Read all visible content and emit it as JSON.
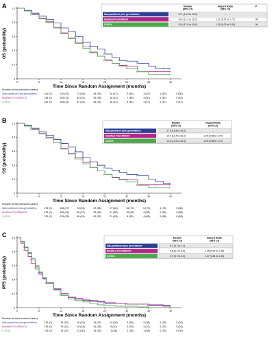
{
  "colors": {
    "nab": "#2e3f94",
    "folfirinox": "#b2278b",
    "sirox": "#4fa84c",
    "axis": "#231f20",
    "table_border": "#9a9a9a",
    "row_shade": "#e6e6e6"
  },
  "arms": [
    "Nab-paclitaxel plus gemcitabine",
    "Modified FOLFIRINOX",
    "S-IROX"
  ],
  "chart_data": [
    {
      "id": "A",
      "type": "line",
      "step": true,
      "ylabel": "OS (probability)",
      "xlabel": "Time Since Random Assignment (months)",
      "xlim": [
        0,
        45
      ],
      "ylim": [
        0,
        1
      ],
      "xticks": [
        0,
        6,
        12,
        18,
        24,
        30,
        36,
        42
      ],
      "yticks": [
        0,
        0.2,
        0.4,
        0.6,
        0.8,
        1.0
      ],
      "yticklabels": [
        "0",
        "0.2",
        "0.4",
        "0.6",
        "0.8",
        "1.0"
      ],
      "table": {
        "headers": [
          "",
          "Median\n(95% CI)",
          "Hazard Ratio\n(95% CI)",
          "P"
        ],
        "rows": [
          [
            "Nab-paclitaxel plus gemcitabine",
            "17.1 (14.5 to 19.2)",
            "–",
            ""
          ],
          [
            "Modified FOLFIRINOX",
            "14.0 (11.3 to 16.2)",
            "1.31 (0.97 to 1.77)",
            ".08"
          ],
          [
            "S-IROX",
            "13.6 (12.0 to 16.4)",
            "1.35 (1.00 to 1.82)",
            ".06"
          ]
        ]
      },
      "risk_title": "Number at risk (censored cases)",
      "risk": [
        [
          "141 (0)",
          "110 (20)",
          "73 (26)",
          "44 (35)",
          "20 (47)",
          "9 (54)",
          "3 (57)",
          "1 (60)",
          "0 (60)"
        ],
        [
          "143 (0)",
          "104 (21)",
          "60 (31)",
          "35 (38)",
          "18 (42)",
          "7 (48)",
          "4 (50)",
          "1 (52)",
          "0 (52)"
        ],
        [
          "142 (0)",
          "104 (22)",
          "67 (25)",
          "35 (34)",
          "16 (41)",
          "6 (44)",
          "1 (47)",
          "0 (47)",
          "0 (47)"
        ]
      ],
      "series": [
        {
          "name": "Nab-paclitaxel plus gemcitabine",
          "x": [
            0,
            2,
            4,
            6,
            8,
            10,
            12,
            14,
            16,
            18,
            20,
            22,
            24,
            26,
            28,
            30,
            33,
            36,
            38,
            40,
            42
          ],
          "y": [
            1.0,
            0.97,
            0.93,
            0.89,
            0.84,
            0.79,
            0.72,
            0.67,
            0.6,
            0.52,
            0.46,
            0.42,
            0.35,
            0.3,
            0.26,
            0.25,
            0.22,
            0.18,
            0.15,
            0.14,
            0.14
          ]
        },
        {
          "name": "Modified FOLFIRINOX",
          "x": [
            0,
            2,
            4,
            6,
            8,
            10,
            12,
            14,
            16,
            18,
            20,
            22,
            24,
            26,
            28,
            30,
            33,
            36,
            38,
            40,
            42
          ],
          "y": [
            1.0,
            0.96,
            0.91,
            0.85,
            0.8,
            0.72,
            0.65,
            0.58,
            0.52,
            0.45,
            0.37,
            0.32,
            0.26,
            0.22,
            0.19,
            0.18,
            0.1,
            0.1,
            0.1,
            0.1,
            0.1
          ]
        },
        {
          "name": "S-IROX",
          "x": [
            0,
            2,
            4,
            6,
            8,
            10,
            12,
            14,
            16,
            18,
            20,
            22,
            24,
            26,
            28,
            30,
            33,
            36,
            38,
            40,
            42
          ],
          "y": [
            1.0,
            0.96,
            0.92,
            0.86,
            0.81,
            0.73,
            0.64,
            0.57,
            0.5,
            0.43,
            0.38,
            0.32,
            0.27,
            0.22,
            0.18,
            0.14,
            0.1,
            0.06,
            0.06,
            0.06,
            0.06
          ]
        }
      ]
    },
    {
      "id": "B",
      "type": "line",
      "step": true,
      "ylabel": "OS (probability)",
      "xlabel": "Time Since Random Assignment (months)",
      "xlim": [
        0,
        45
      ],
      "ylim": [
        0,
        1
      ],
      "xticks": [
        0,
        6,
        12,
        18,
        24,
        30,
        36,
        42
      ],
      "yticks": [
        0,
        0.2,
        0.4,
        0.6,
        0.8,
        1.0
      ],
      "yticklabels": [
        "0",
        "0.2",
        "0.4",
        "0.6",
        "0.8",
        "1.0"
      ],
      "table": {
        "headers": [
          "",
          "Median\n(95% CI)",
          "Hazard Ratio\n(95% CI)"
        ],
        "rows": [
          [
            "Nab-paclitaxel plus gemcitabine",
            "17.0 (14.5 to 18.9)",
            "–"
          ],
          [
            "Modified FOLFIRINOX",
            "14.0 (11.4 to 16.3)",
            "1.29 (0.98 to 1.70)"
          ],
          [
            "S-IROX",
            "13.6 (12.3 to 16.3)",
            "1.29 (0.98 to 1.70)"
          ]
        ]
      },
      "risk_title": "Number at risk (censored cases)",
      "risk": [
        [
          "176 (0)",
          "135 (27)",
          "76 (51)",
          "47 (58)",
          "27 (64)",
          "15 (70)",
          "6 (75)",
          "4 (76)",
          "0 (80)"
        ],
        [
          "175 (0)",
          "126 (24)",
          "66 (47)",
          "39 (56)",
          "21 (60)",
          "10 (62)",
          "4 (65)",
          "2 (65)",
          "0 (66)"
        ],
        [
          "176 (0)",
          "133 (25)",
          "68 (51)",
          "42 (52)",
          "21 (59)",
          "8 (63)",
          "4 (65)",
          "0 (68)",
          "0 (68)"
        ]
      ],
      "series": [
        {
          "name": "Nab-paclitaxel plus gemcitabine",
          "x": [
            0,
            2,
            4,
            6,
            8,
            10,
            12,
            14,
            16,
            18,
            20,
            22,
            24,
            26,
            28,
            30,
            33,
            36,
            38,
            40,
            42
          ],
          "y": [
            1.0,
            0.97,
            0.93,
            0.88,
            0.83,
            0.77,
            0.71,
            0.66,
            0.59,
            0.51,
            0.45,
            0.4,
            0.36,
            0.33,
            0.3,
            0.27,
            0.25,
            0.2,
            0.17,
            0.14,
            0.14
          ]
        },
        {
          "name": "Modified FOLFIRINOX",
          "x": [
            0,
            2,
            4,
            6,
            8,
            10,
            12,
            14,
            16,
            18,
            20,
            22,
            24,
            26,
            28,
            30,
            33,
            36,
            38,
            40,
            42
          ],
          "y": [
            1.0,
            0.96,
            0.91,
            0.85,
            0.79,
            0.72,
            0.64,
            0.57,
            0.51,
            0.44,
            0.37,
            0.32,
            0.27,
            0.22,
            0.2,
            0.19,
            0.12,
            0.12,
            0.12,
            0.12,
            0.12
          ]
        },
        {
          "name": "S-IROX",
          "x": [
            0,
            2,
            4,
            6,
            8,
            10,
            12,
            14,
            16,
            18,
            20,
            22,
            24,
            26,
            28,
            30,
            33,
            36,
            38,
            40,
            42
          ],
          "y": [
            1.0,
            0.96,
            0.92,
            0.86,
            0.8,
            0.72,
            0.63,
            0.56,
            0.49,
            0.42,
            0.37,
            0.32,
            0.27,
            0.23,
            0.19,
            0.16,
            0.11,
            0.08,
            0.08,
            0.08,
            0.08
          ]
        }
      ]
    },
    {
      "id": "C",
      "type": "line",
      "step": true,
      "ylabel": "PFS (probability)",
      "xlabel": "Time Since Random Assignment (months)",
      "xlim": [
        0,
        45
      ],
      "ylim": [
        0,
        1
      ],
      "xticks": [
        0,
        6,
        12,
        18,
        24,
        30,
        36,
        42
      ],
      "yticks": [
        0,
        0.2,
        0.4,
        0.6,
        0.8,
        1.0
      ],
      "yticklabels": [
        "0",
        "0.2",
        "0.4",
        "0.6",
        "0.8",
        "1.0"
      ],
      "table": {
        "headers": [
          "",
          "Median\n(95% CI)",
          "Hazard Ratio\n(95% CI)"
        ],
        "rows": [
          [
            "Nab-paclitaxel plus gemcitabine",
            "6.7 (5.7 to 7.4)",
            "–"
          ],
          [
            "Modified FOLFIRINOX",
            "5.8 (5.1 to 6.9)",
            "1.15 (0.91 to 1.45)"
          ],
          [
            "S-IROX",
            "6.7 (5.7 to 8.3)",
            "1.07 (0.84 to 1.35)"
          ]
        ]
      },
      "risk_title": "Number at risk (censored cases)",
      "risk": [
        [
          "176 (0)",
          "78 (23)",
          "26 (33)",
          "16 (34)",
          "10 (36)",
          "5 (36)",
          "2 (38)",
          "1 (38)",
          "0 (39)"
        ],
        [
          "175 (0)",
          "74 (13)",
          "28 (18)",
          "16 (18)",
          "8 (20)",
          "5 (20)",
          "3 (21)",
          "2 (23)",
          "0 (24)"
        ],
        [
          "176 (0)",
          "76 (22)",
          "23 (30)",
          "14 (35)",
          "3 (38)",
          "2 (38)",
          "1 (38)",
          "0 (39)",
          "0 (39)"
        ]
      ],
      "series": [
        {
          "name": "Nab-paclitaxel plus gemcitabine",
          "x": [
            0,
            1,
            2,
            3,
            4,
            5,
            6,
            7,
            8,
            10,
            12,
            14,
            16,
            18,
            20,
            22,
            24,
            27,
            30,
            33,
            36,
            40,
            42
          ],
          "y": [
            1.0,
            0.94,
            0.86,
            0.77,
            0.68,
            0.58,
            0.5,
            0.42,
            0.35,
            0.26,
            0.18,
            0.14,
            0.12,
            0.1,
            0.09,
            0.08,
            0.06,
            0.06,
            0.05,
            0.05,
            0.03,
            0.03,
            0.03
          ]
        },
        {
          "name": "Modified FOLFIRINOX",
          "x": [
            0,
            1,
            2,
            3,
            4,
            5,
            6,
            7,
            8,
            10,
            12,
            14,
            16,
            18,
            20,
            22,
            24,
            27,
            30,
            33,
            36,
            40,
            42
          ],
          "y": [
            1.0,
            0.92,
            0.82,
            0.73,
            0.63,
            0.55,
            0.48,
            0.41,
            0.35,
            0.27,
            0.2,
            0.15,
            0.13,
            0.11,
            0.1,
            0.09,
            0.07,
            0.06,
            0.05,
            0.05,
            0.04,
            0.02,
            0.02
          ]
        },
        {
          "name": "S-IROX",
          "x": [
            0,
            1,
            2,
            3,
            4,
            5,
            6,
            7,
            8,
            10,
            12,
            14,
            16,
            18,
            20,
            22,
            24,
            27,
            30,
            33,
            36,
            40,
            42
          ],
          "y": [
            1.0,
            0.95,
            0.87,
            0.79,
            0.7,
            0.6,
            0.51,
            0.43,
            0.36,
            0.25,
            0.17,
            0.12,
            0.1,
            0.08,
            0.06,
            0.04,
            0.03,
            0.02,
            0.02,
            0.01,
            0.0,
            0.0,
            0.0
          ]
        }
      ]
    }
  ]
}
